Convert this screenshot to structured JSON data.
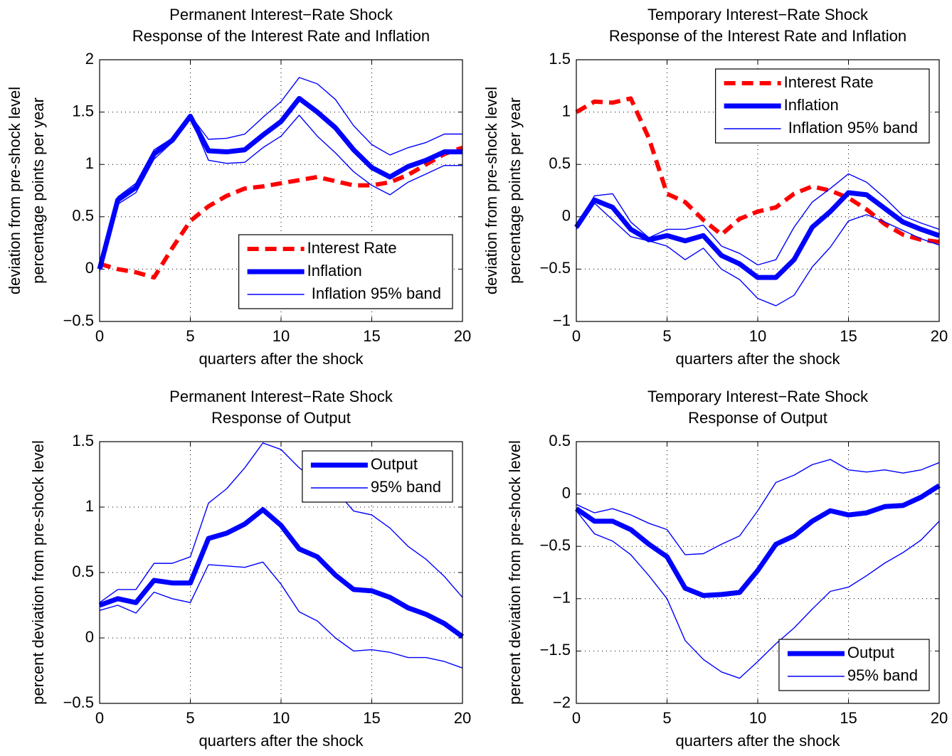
{
  "chart_data": [
    {
      "type": "line",
      "title": "Permanent Interest−Rate Shock",
      "subtitle": "Response of the Interest Rate and Inflation",
      "xlabel": "quarters after the shock",
      "ylabel": [
        "deviation from pre-shock level",
        "percentage points  per year"
      ],
      "x": [
        0,
        1,
        2,
        3,
        4,
        5,
        6,
        7,
        8,
        9,
        10,
        11,
        12,
        13,
        14,
        15,
        16,
        17,
        18,
        19,
        20
      ],
      "xlim": [
        0,
        20
      ],
      "xticks": [
        0,
        5,
        10,
        15,
        20
      ],
      "ylim": [
        -0.5,
        2
      ],
      "yticks": [
        {
          "value": -0.5,
          "label": "−0.5"
        },
        0,
        0.5,
        1,
        1.5,
        2
      ],
      "grid": true,
      "legend": "lower right",
      "series": [
        {
          "name": "Interest Rate",
          "color": "#ff0000",
          "style": "dashed",
          "values": [
            0.05,
            0.0,
            -0.03,
            -0.08,
            0.2,
            0.46,
            0.6,
            0.7,
            0.77,
            0.79,
            0.82,
            0.85,
            0.88,
            0.84,
            0.8,
            0.8,
            0.83,
            0.9,
            1.0,
            1.1,
            1.16
          ]
        },
        {
          "name": "Inflation",
          "color": "#0000ff",
          "style": "thick",
          "values": [
            0,
            0.66,
            0.78,
            1.1,
            1.23,
            1.46,
            1.13,
            1.12,
            1.14,
            1.28,
            1.41,
            1.63,
            1.5,
            1.35,
            1.14,
            0.97,
            0.88,
            0.98,
            1.04,
            1.12,
            1.12
          ]
        },
        {
          "name": " Inflation 95% band",
          "color": "#0000ff",
          "style": "band",
          "upper": [
            0.02,
            0.69,
            0.82,
            1.14,
            1.25,
            1.47,
            1.24,
            1.25,
            1.29,
            1.45,
            1.6,
            1.83,
            1.77,
            1.62,
            1.37,
            1.19,
            1.09,
            1.16,
            1.21,
            1.29,
            1.29
          ],
          "lower": [
            -0.02,
            0.62,
            0.73,
            1.05,
            1.21,
            1.45,
            1.04,
            1.01,
            1.02,
            1.16,
            1.27,
            1.47,
            1.27,
            1.11,
            0.93,
            0.8,
            0.71,
            0.83,
            0.91,
            0.99,
            0.99
          ]
        }
      ]
    },
    {
      "type": "line",
      "title": "Temporary Interest−Rate Shock",
      "subtitle": "Response of the Interest Rate and Inflation",
      "xlabel": "quarters after the shock",
      "ylabel": [
        "deviation from pre-shock level",
        "percentage points  per year"
      ],
      "x": [
        0,
        1,
        2,
        3,
        4,
        5,
        6,
        7,
        8,
        9,
        10,
        11,
        12,
        13,
        14,
        15,
        16,
        17,
        18,
        19,
        20
      ],
      "xlim": [
        0,
        20
      ],
      "xticks": [
        0,
        5,
        10,
        15,
        20
      ],
      "ylim": [
        -1,
        1.5
      ],
      "yticks": [
        {
          "value": -1,
          "label": "−1"
        },
        {
          "value": -0.5,
          "label": "−0.5"
        },
        0,
        0.5,
        1,
        1.5
      ],
      "grid": true,
      "legend": "upper right",
      "series": [
        {
          "name": "Interest Rate",
          "color": "#ff0000",
          "style": "dashed",
          "values": [
            1.0,
            1.1,
            1.09,
            1.13,
            0.75,
            0.22,
            0.14,
            -0.03,
            -0.17,
            -0.02,
            0.05,
            0.09,
            0.22,
            0.29,
            0.25,
            0.18,
            0.07,
            -0.07,
            -0.17,
            -0.22,
            -0.24
          ]
        },
        {
          "name": "Inflation",
          "color": "#0000ff",
          "style": "thick",
          "values": [
            -0.1,
            0.16,
            0.09,
            -0.12,
            -0.22,
            -0.18,
            -0.23,
            -0.18,
            -0.37,
            -0.45,
            -0.58,
            -0.58,
            -0.41,
            -0.1,
            0.05,
            0.23,
            0.21,
            0.08,
            -0.05,
            -0.12,
            -0.18
          ]
        },
        {
          "name": " Inflation 95% band",
          "color": "#0000ff",
          "style": "band",
          "upper": [
            -0.08,
            0.2,
            0.22,
            -0.05,
            -0.2,
            -0.12,
            -0.12,
            -0.08,
            -0.28,
            -0.35,
            -0.46,
            -0.41,
            -0.1,
            0.14,
            0.27,
            0.41,
            0.33,
            0.18,
            0.01,
            -0.06,
            -0.12
          ],
          "lower": [
            -0.12,
            0.13,
            -0.03,
            -0.19,
            -0.23,
            -0.28,
            -0.41,
            -0.3,
            -0.5,
            -0.6,
            -0.78,
            -0.85,
            -0.75,
            -0.48,
            -0.29,
            -0.04,
            0.02,
            -0.05,
            -0.13,
            -0.21,
            -0.27
          ]
        }
      ]
    },
    {
      "type": "line",
      "title": "Permanent Interest−Rate Shock",
      "subtitle": "Response of Output",
      "xlabel": "quarters after the shock",
      "ylabel": [
        "percent deviation from pre-shock level"
      ],
      "x": [
        0,
        1,
        2,
        3,
        4,
        5,
        6,
        7,
        8,
        9,
        10,
        11,
        12,
        13,
        14,
        15,
        16,
        17,
        18,
        19,
        20
      ],
      "xlim": [
        0,
        20
      ],
      "xticks": [
        0,
        5,
        10,
        15,
        20
      ],
      "ylim": [
        -0.5,
        1.5
      ],
      "yticks": [
        {
          "value": -0.5,
          "label": "−0.5"
        },
        0,
        0.5,
        1,
        1.5
      ],
      "grid": true,
      "legend": "upper right",
      "series": [
        {
          "name": "Output",
          "color": "#0000ff",
          "style": "thick",
          "values": [
            0.25,
            0.3,
            0.27,
            0.44,
            0.42,
            0.42,
            0.76,
            0.8,
            0.87,
            0.98,
            0.86,
            0.68,
            0.62,
            0.48,
            0.37,
            0.36,
            0.31,
            0.23,
            0.18,
            0.11,
            0.01
          ]
        },
        {
          "name": "95% band",
          "color": "#0000ff",
          "style": "band",
          "upper": [
            0.27,
            0.37,
            0.37,
            0.57,
            0.57,
            0.62,
            1.03,
            1.14,
            1.3,
            1.49,
            1.44,
            1.3,
            1.2,
            1.13,
            0.97,
            0.94,
            0.84,
            0.7,
            0.6,
            0.47,
            0.31
          ],
          "lower": [
            0.21,
            0.25,
            0.19,
            0.35,
            0.3,
            0.27,
            0.56,
            0.55,
            0.54,
            0.58,
            0.41,
            0.2,
            0.13,
            0.0,
            -0.1,
            -0.09,
            -0.11,
            -0.15,
            -0.15,
            -0.18,
            -0.23
          ]
        }
      ]
    },
    {
      "type": "line",
      "title": "Temporary Interest−Rate Shock",
      "subtitle": "Response of Output",
      "xlabel": "quarters after the shock",
      "ylabel": [
        "percent deviation from pre-shock level"
      ],
      "x": [
        0,
        1,
        2,
        3,
        4,
        5,
        6,
        7,
        8,
        9,
        10,
        11,
        12,
        13,
        14,
        15,
        16,
        17,
        18,
        19,
        20
      ],
      "xlim": [
        0,
        20
      ],
      "xticks": [
        0,
        5,
        10,
        15,
        20
      ],
      "ylim": [
        -2,
        0.5
      ],
      "yticks": [
        {
          "value": -2,
          "label": "−2"
        },
        {
          "value": -1.5,
          "label": "−1.5"
        },
        {
          "value": -1,
          "label": "−1"
        },
        {
          "value": -0.5,
          "label": "−0.5"
        },
        0,
        0.5
      ],
      "grid": true,
      "legend": "lower right",
      "series": [
        {
          "name": "Output",
          "color": "#0000ff",
          "style": "thick",
          "values": [
            -0.14,
            -0.26,
            -0.26,
            -0.34,
            -0.48,
            -0.6,
            -0.9,
            -0.97,
            -0.96,
            -0.94,
            -0.73,
            -0.48,
            -0.4,
            -0.26,
            -0.16,
            -0.2,
            -0.18,
            -0.12,
            -0.11,
            -0.03,
            0.08
          ]
        },
        {
          "name": "95% band",
          "color": "#0000ff",
          "style": "band",
          "upper": [
            -0.1,
            -0.18,
            -0.14,
            -0.2,
            -0.28,
            -0.34,
            -0.58,
            -0.57,
            -0.48,
            -0.4,
            -0.16,
            0.11,
            0.18,
            0.28,
            0.33,
            0.23,
            0.21,
            0.23,
            0.2,
            0.23,
            0.3
          ],
          "lower": [
            -0.16,
            -0.38,
            -0.45,
            -0.58,
            -0.78,
            -1.0,
            -1.4,
            -1.58,
            -1.7,
            -1.76,
            -1.6,
            -1.43,
            -1.28,
            -1.1,
            -0.93,
            -0.89,
            -0.78,
            -0.66,
            -0.56,
            -0.44,
            -0.26
          ]
        }
      ]
    }
  ]
}
